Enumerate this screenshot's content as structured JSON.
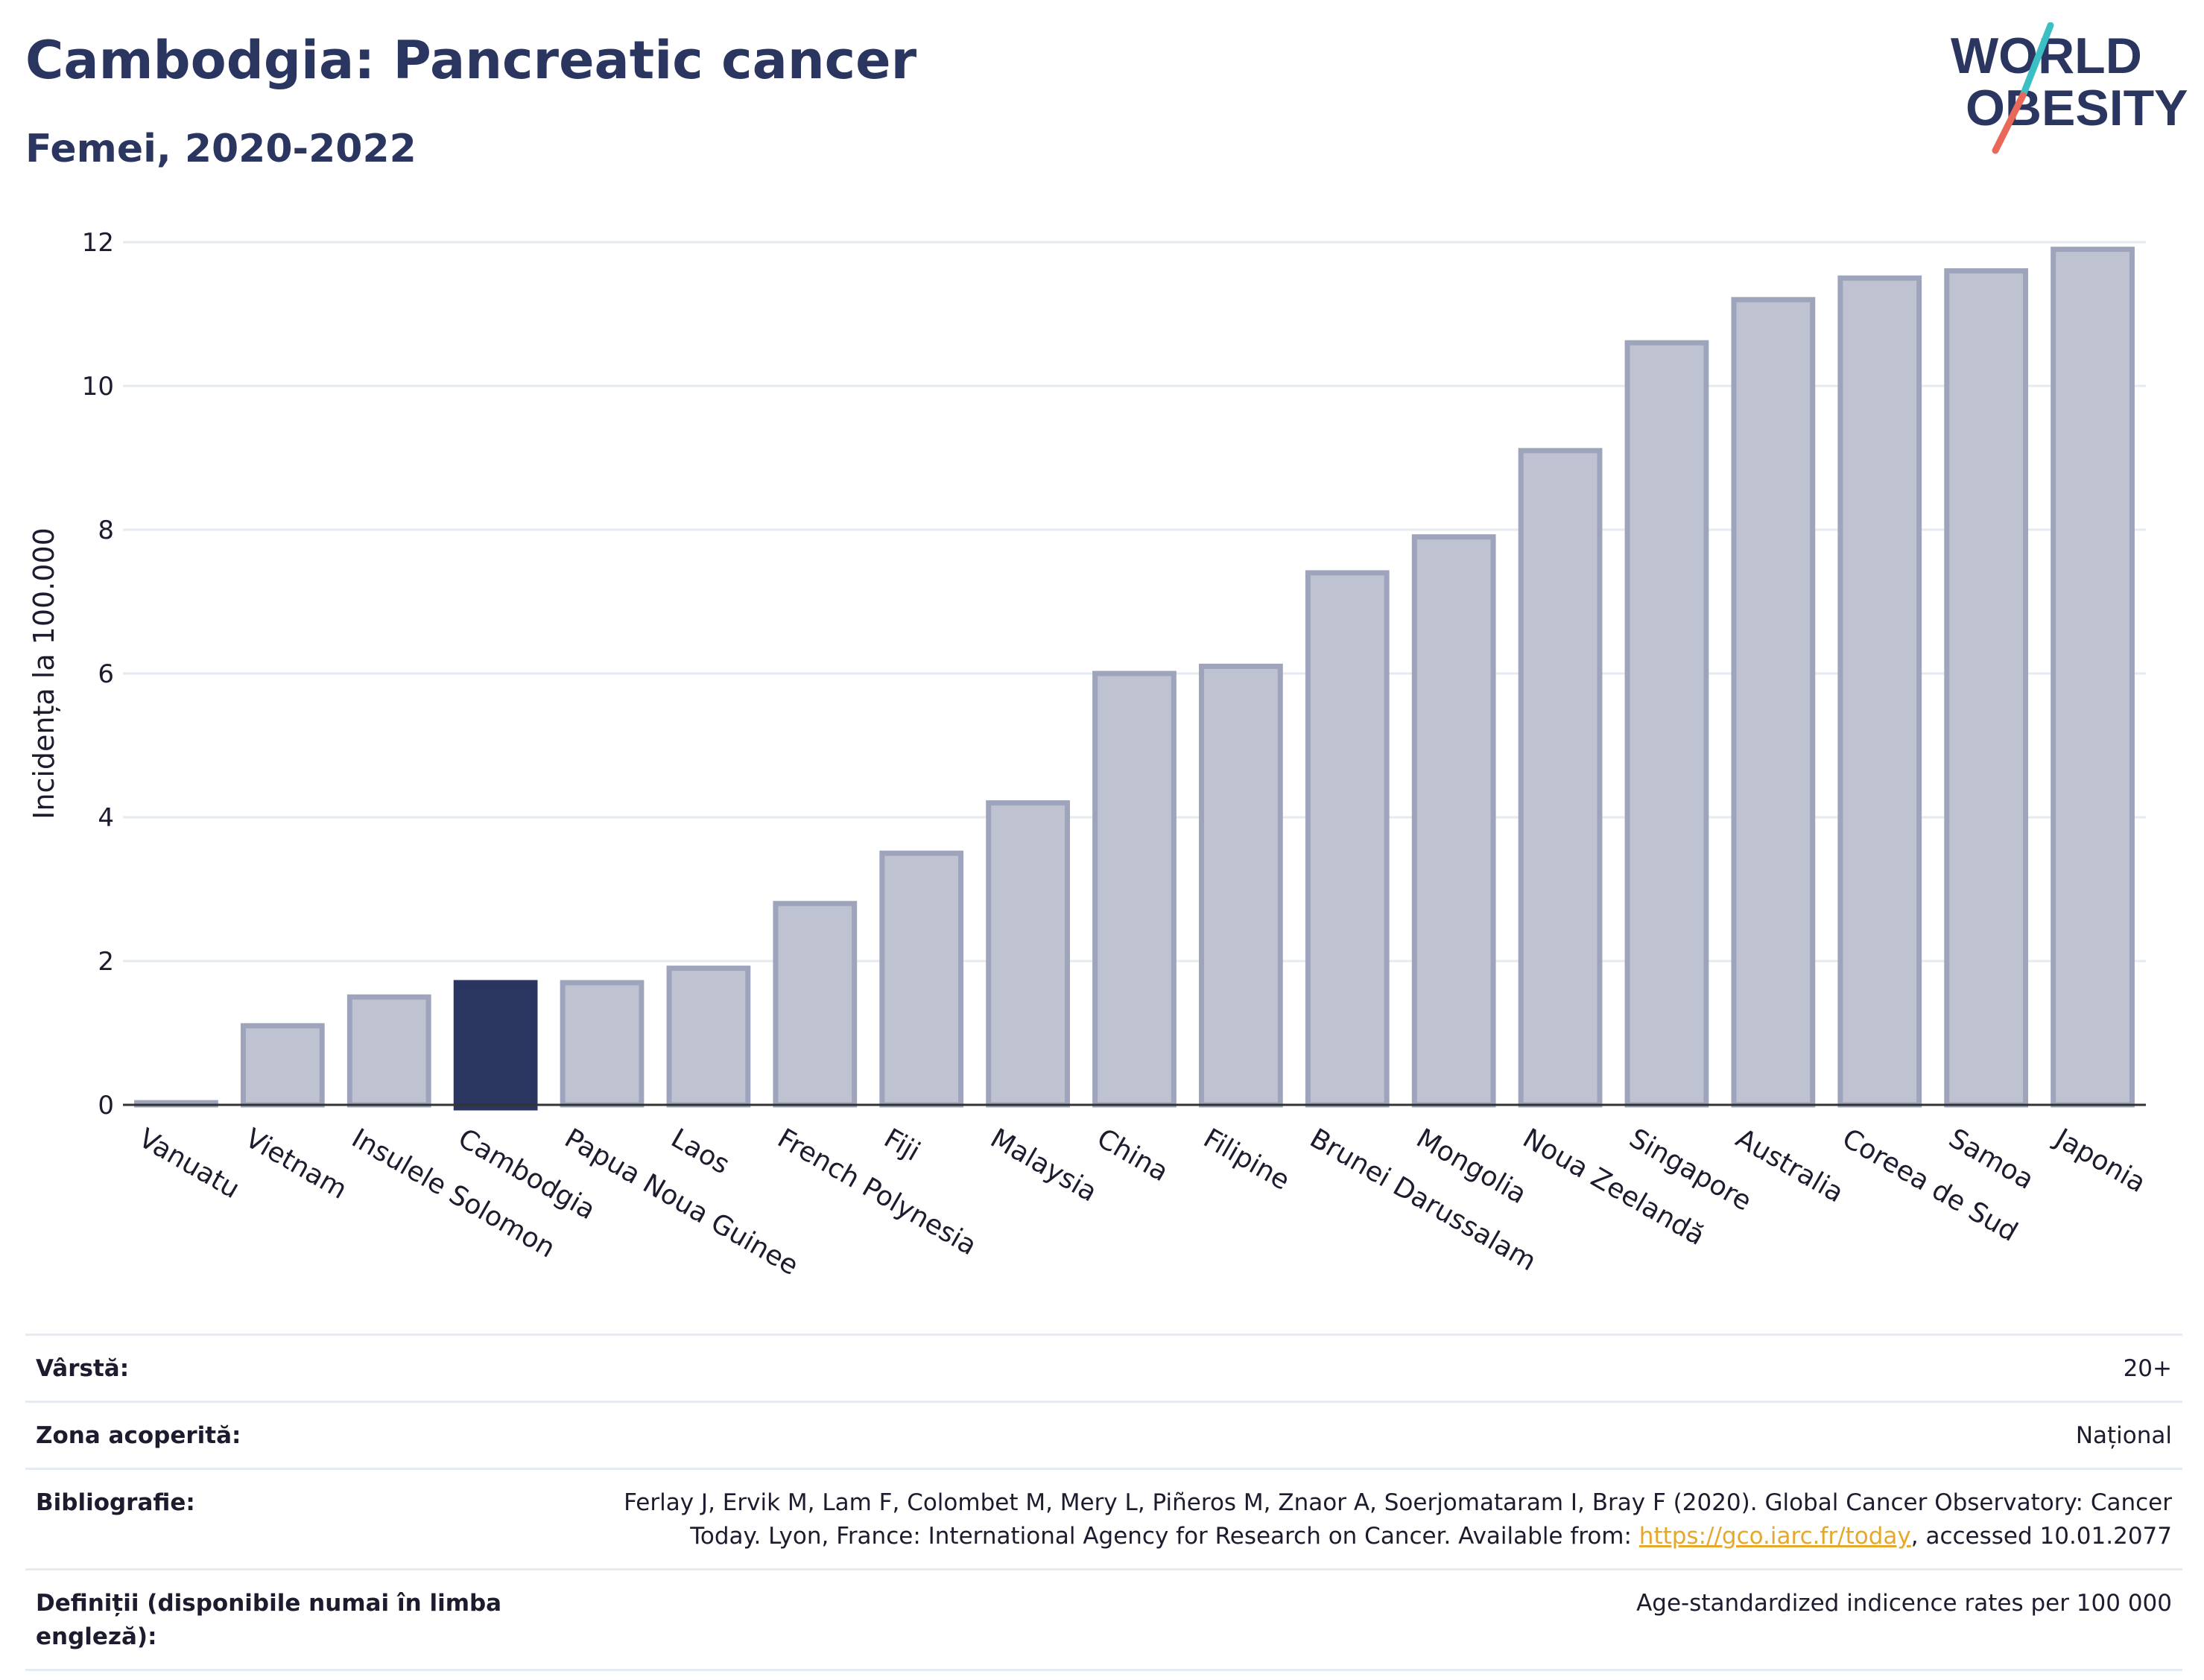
{
  "header": {
    "title": "Cambodgia: Pancreatic cancer",
    "subtitle": "Femei, 2020-2022"
  },
  "logo": {
    "line1": "WORLD",
    "line2": "OBESITY",
    "colors": {
      "text": "#2a3560",
      "slash_top": "#3bbfc4",
      "slash_bottom": "#e8685a"
    }
  },
  "colors": {
    "bar_fill": "#bfc3d1",
    "bar_stroke": "#9ea4bb",
    "highlight": "#2a3560",
    "grid": "#e6ebf2",
    "axis": "#333333"
  },
  "chart_data": {
    "type": "bar",
    "ylabel": "Incidența la 100.000",
    "ylim": [
      0,
      12
    ],
    "yticks": [
      0,
      2,
      4,
      6,
      8,
      10,
      12
    ],
    "grid": true,
    "highlight": "Cambodgia",
    "categories": [
      "Vanuatu",
      "Vietnam",
      "Insulele Solomon",
      "Cambodgia",
      "Papua Noua Guinee",
      "Laos",
      "French Polynesia",
      "Fiji",
      "Malaysia",
      "China",
      "Filipine",
      "Brunei Darussalam",
      "Mongolia",
      "Noua Zeelandă",
      "Singapore",
      "Australia",
      "Coreea de Sud",
      "Samoa",
      "Japonia"
    ],
    "values": [
      0.03,
      1.1,
      1.5,
      1.7,
      1.7,
      1.9,
      2.8,
      3.5,
      4.2,
      6.0,
      6.1,
      7.4,
      7.9,
      9.1,
      10.6,
      11.2,
      11.5,
      11.6,
      11.9
    ]
  },
  "meta": [
    {
      "key": "Vârstă:",
      "value": "20+"
    },
    {
      "key": "Zona acoperită:",
      "value": "Național"
    },
    {
      "key": "Bibliografie:",
      "value_line1": "Ferlay J, Ervik M, Lam F, Colombet M, Mery L, Piñeros M, Znaor A, Soerjomataram I, Bray F (2020). Global Cancer Observatory: Cancer",
      "value_line2_pre": "Today. Lyon, France: International Agency for Research on Cancer. Available from: ",
      "link": "https://gco.iarc.fr/today",
      "value_line2_post": ", accessed 10.01.2077"
    },
    {
      "key": "Definiții (disponibile numai în limba engleză):",
      "value": "Age-standardized indicence rates per 100 000"
    }
  ]
}
